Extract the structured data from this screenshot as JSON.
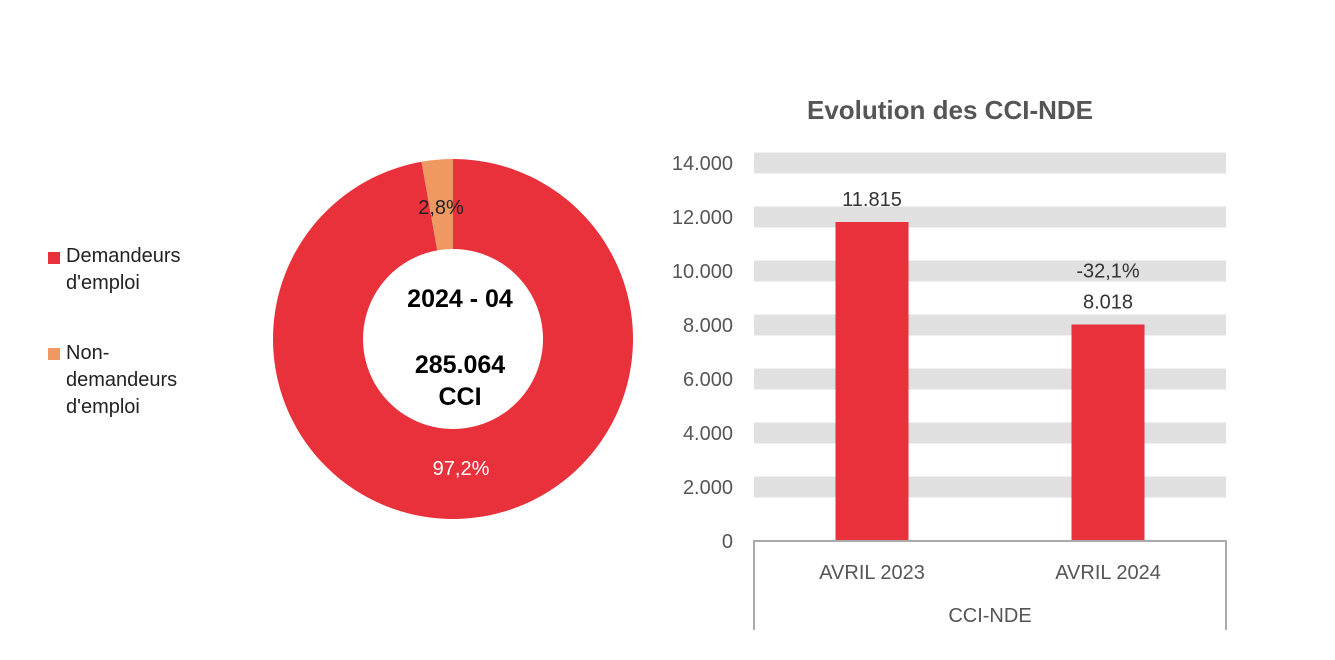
{
  "chart_data": [
    {
      "type": "pie",
      "variant": "donut",
      "center_text": {
        "period": "2024 - 04",
        "total": "285.064",
        "unit": "CCI"
      },
      "slices": [
        {
          "name": "Demandeurs d'emploi",
          "value": 97.2,
          "label": "97,2%",
          "color": "#e8313a"
        },
        {
          "name": "Non-demandeurs d'emploi",
          "value": 2.8,
          "label": "2,8%",
          "color": "#f09862"
        }
      ],
      "legend": {
        "placement": "left",
        "entries": [
          [
            "Demandeurs",
            "d'emploi"
          ],
          [
            "Non-",
            "demandeurs",
            "d'emploi"
          ]
        ]
      }
    },
    {
      "type": "bar",
      "title": "Evolution des CCI-NDE",
      "categories": [
        "AVRIL 2023",
        "AVRIL 2024"
      ],
      "group_label": "CCI-NDE",
      "values": [
        11815,
        8018
      ],
      "value_labels": [
        "11.815",
        "8.018"
      ],
      "change_label": "-32,1%",
      "ylim": [
        0,
        14000
      ],
      "yticks": [
        0,
        2000,
        4000,
        6000,
        8000,
        10000,
        12000,
        14000
      ],
      "ytick_labels": [
        "0",
        "2.000",
        "4.000",
        "6.000",
        "8.000",
        "10.000",
        "12.000",
        "14.000"
      ],
      "grid": "banded",
      "bar_color": "#e8313a"
    }
  ]
}
